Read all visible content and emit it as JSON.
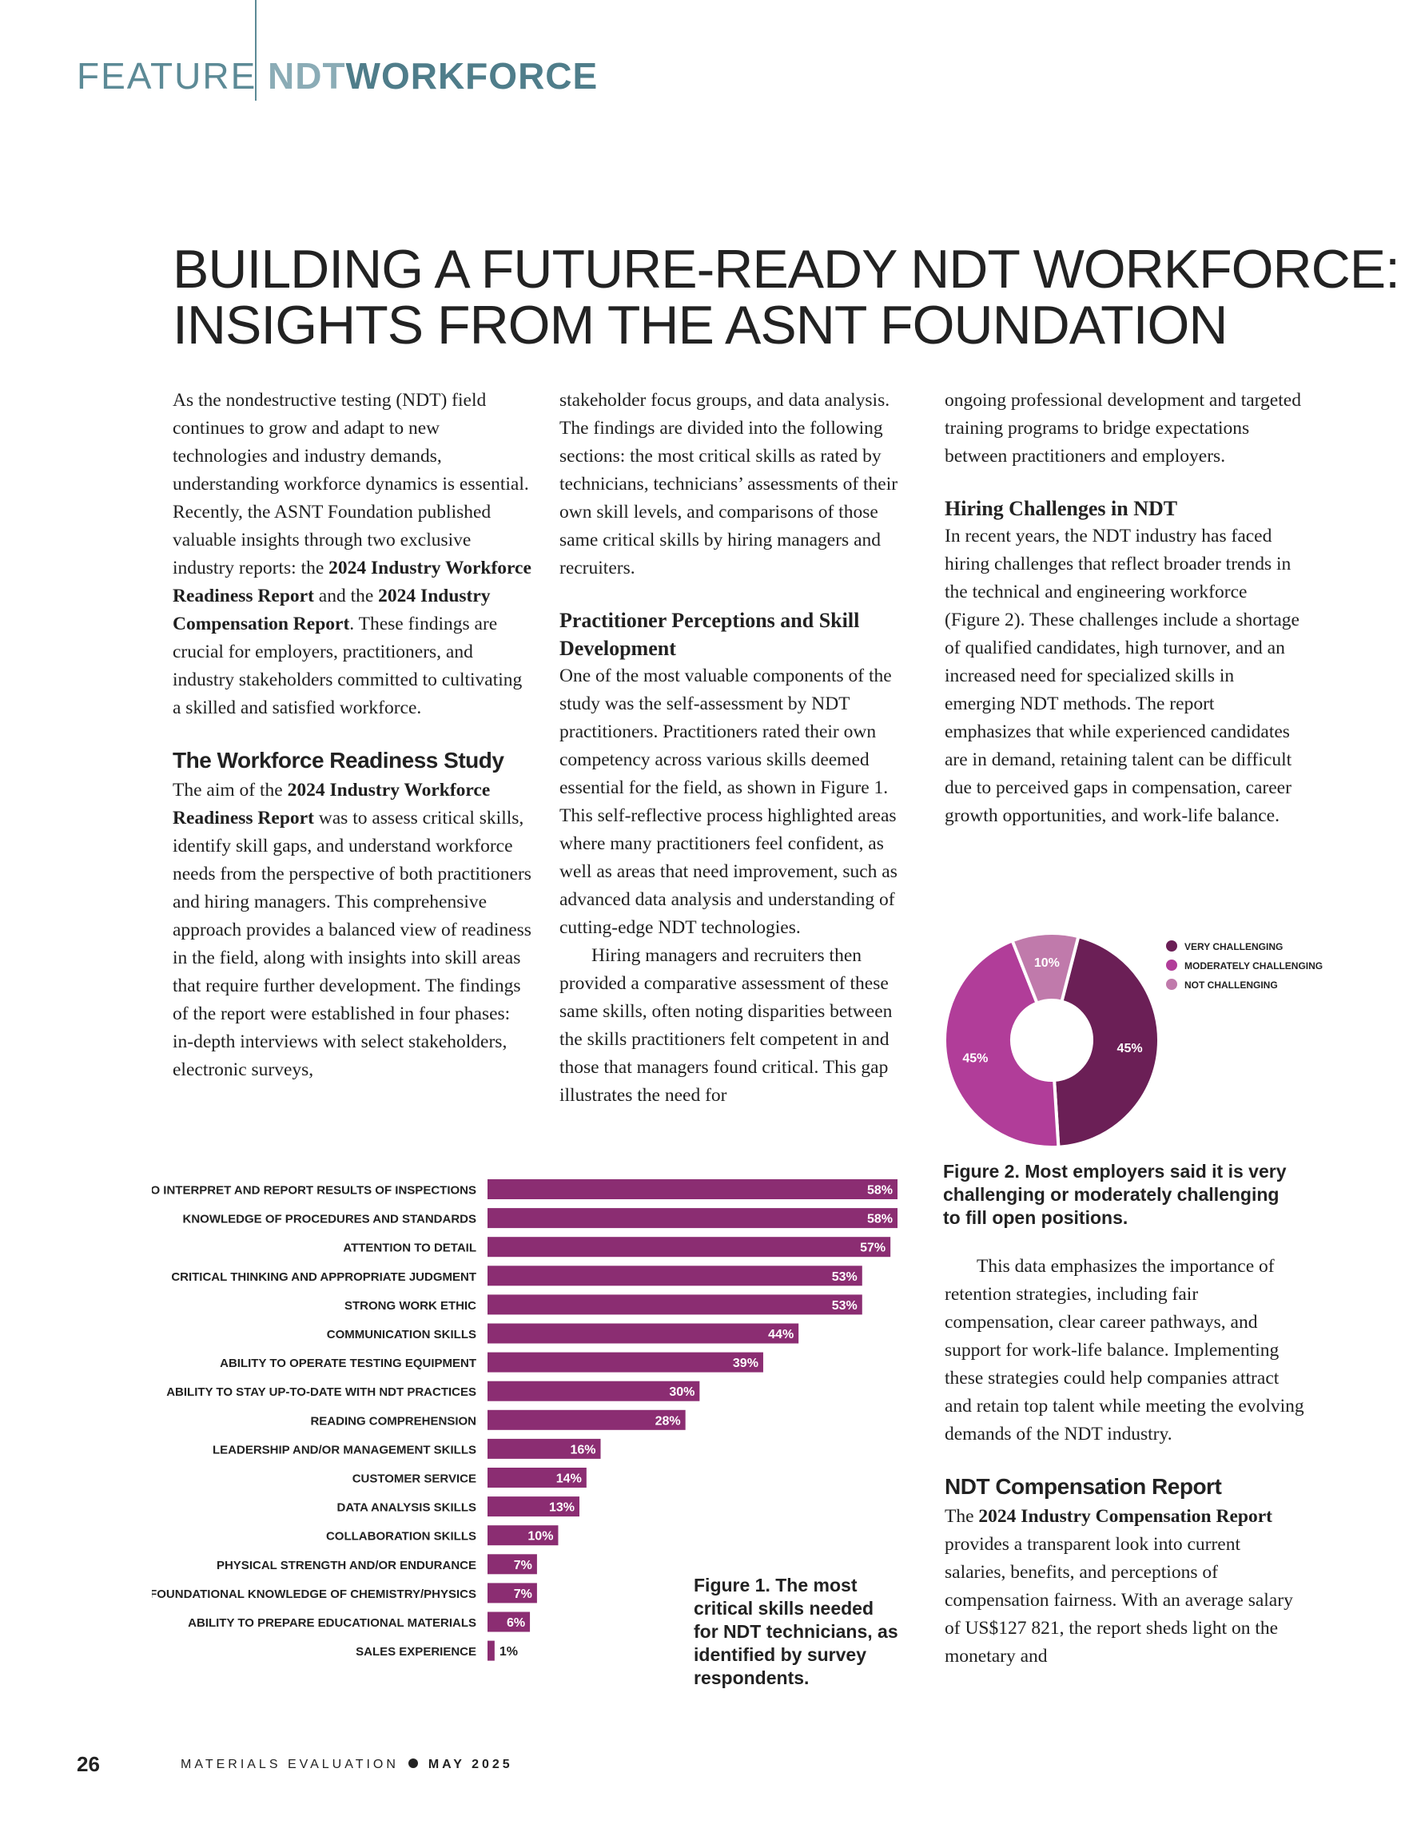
{
  "header": {
    "feature_label": "FEATURE",
    "section_part1": "NDT",
    "section_part2": "WORKFORCE"
  },
  "title": {
    "line1": "BUILDING A FUTURE-READY NDT WORKFORCE:",
    "line2": "INSIGHTS FROM THE ASNT FOUNDATION"
  },
  "col1": {
    "intro_a": "As the nondestructive testing (NDT) field continues to grow and adapt to new technologies and industry demands, understanding workforce dynamics is essential. Recently, the ASNT Foundation published valuable insights through two exclusive industry reports: the ",
    "intro_b1": "2024 Industry Workforce Readiness Report",
    "intro_c": " and the ",
    "intro_b2": "2024 Industry Compensation Report",
    "intro_d": ". These findings are crucial for employers, practitioners, and industry stakeholders committed to cultivating a skilled and satisfied workforce.",
    "heading": "The Workforce Readiness Study",
    "p2_a": "The aim of the ",
    "p2_b": "2024 Industry Workforce Readiness Report",
    "p2_c": " was to assess critical skills, identify skill gaps, and understand workforce needs from the perspective of both practitioners and hiring managers. This comprehensive approach provides a balanced view of readiness in the field, along with insights into skill areas that require further development. The findings of the report were established in four phases: in-depth interviews with select stakeholders, electronic surveys,"
  },
  "col2": {
    "p1": "stakeholder focus groups, and data analysis. The findings are divided into the following sections: the most critical skills as rated by technicians, technicians’ assessments of their own skill levels, and comparisons of those same critical skills by hiring managers and recruiters.",
    "heading": "Practitioner Perceptions and Skill Development",
    "p2": "One of the most valuable components of the study was the self-assessment by NDT practitioners. Practitioners rated their own competency across various skills deemed essential for the field, as shown in Figure 1. This self-reflective process highlighted areas where many practitioners feel confident, as well as areas that need improvement, such as advanced data analysis and understanding of cutting-edge NDT technologies.",
    "p3": "Hiring managers and recruiters then provided a comparative assessment of these same skills, often noting disparities between the skills practitioners felt competent in and those that managers found critical. This gap illustrates the need for"
  },
  "col3": {
    "p1": "ongoing professional development and targeted training programs to bridge expectations between practitioners and employers.",
    "heading1": "Hiring Challenges in NDT",
    "p2": "In recent years, the NDT industry has faced hiring challenges that reflect broader trends in the technical and engineering workforce (Figure 2). These challenges include a shortage of qualified candidates, high turnover, and an increased need for specialized skills in emerging NDT methods. The report emphasizes that while experienced candidates are in demand, retaining talent can be difficult due to perceived gaps in compensation, career growth opportunities, and work-life balance.",
    "fig2_caption": "Figure 2. Most employers said it is very challenging or moderately challenging to fill open positions.",
    "p3": "This data emphasizes the importance of retention strategies, including fair compensation, clear career pathways, and support for work-life balance. Implementing these strategies could help companies attract and retain top talent while meeting the evolving demands of the NDT industry.",
    "heading2": "NDT Compensation Report",
    "p4_a": "The ",
    "p4_b": "2024 Industry Compensation Report",
    "p4_c": " provides a transparent look into current salaries, benefits, and perceptions of compensation fairness. With an average salary of US$127 821, the report sheds light on the monetary and"
  },
  "fig1_caption": "Figure 1. The most critical skills needed for NDT technicians, as identified by survey respondents.",
  "footer": {
    "page_number": "26",
    "publication": "MATERIALS EVALUATION",
    "issue": "MAY 2025"
  },
  "colors": {
    "bar": "#8b2d72",
    "very": "#6b1f56",
    "moderate": "#b13d99",
    "not": "#c07aab",
    "accent": "#5c8a96"
  },
  "chart_data": [
    {
      "type": "bar",
      "orientation": "horizontal",
      "categories": [
        "ABILITY TO INTERPRET AND REPORT RESULTS OF INSPECTIONS",
        "KNOWLEDGE OF PROCEDURES AND STANDARDS",
        "ATTENTION TO DETAIL",
        "CRITICAL THINKING AND APPROPRIATE JUDGMENT",
        "STRONG WORK ETHIC",
        "COMMUNICATION SKILLS",
        "ABILITY TO OPERATE TESTING EQUIPMENT",
        "ABILITY TO STAY UP-TO-DATE WITH NDT PRACTICES",
        "READING COMPREHENSION",
        "LEADERSHIP AND/OR MANAGEMENT SKILLS",
        "CUSTOMER SERVICE",
        "DATA ANALYSIS SKILLS",
        "COLLABORATION SKILLS",
        "PHYSICAL STRENGTH AND/OR ENDURANCE",
        "FOUNDATIONAL KNOWLEDGE OF CHEMISTRY/PHYSICS",
        "ABILITY TO PREPARE EDUCATIONAL MATERIALS",
        "SALES EXPERIENCE"
      ],
      "values": [
        58,
        58,
        57,
        53,
        53,
        44,
        39,
        30,
        28,
        16,
        14,
        13,
        10,
        7,
        7,
        6,
        1
      ],
      "value_labels": [
        "58%",
        "58%",
        "57%",
        "53%",
        "53%",
        "44%",
        "39%",
        "30%",
        "28%",
        "16%",
        "14%",
        "13%",
        "10%",
        "7%",
        "7%",
        "6%",
        "1%"
      ],
      "unit": "%",
      "xlim": [
        0,
        58
      ],
      "grid": false
    },
    {
      "type": "pie",
      "donut": true,
      "categories": [
        "VERY CHALLENGING",
        "MODERATELY CHALLENGING",
        "NOT CHALLENGING"
      ],
      "values": [
        45,
        45,
        10
      ],
      "value_labels": [
        "45%",
        "45%",
        "10%"
      ],
      "legend": "top-right"
    }
  ]
}
